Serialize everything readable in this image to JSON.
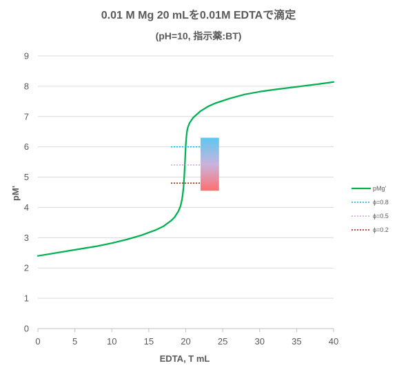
{
  "chart_data": {
    "type": "line",
    "title": "0.01 M Mg 20 mLを0.01M EDTAで滴定",
    "subtitle": "(pH=10, 指示薬:BT)",
    "xlabel": "EDTA, T mL",
    "ylabel": "pM'",
    "xlim": [
      0,
      40
    ],
    "ylim": [
      0,
      9
    ],
    "xticks": [
      "0",
      "5",
      "10",
      "15",
      "20",
      "25",
      "30",
      "35",
      "40"
    ],
    "yticks": [
      "0",
      "1",
      "2",
      "3",
      "4",
      "5",
      "6",
      "7",
      "8",
      "9"
    ],
    "grid": "horizontal",
    "legend_position": "right",
    "series": [
      {
        "name": "pMg'",
        "color": "#00b050",
        "style": "solid",
        "x": [
          0,
          2,
          4,
          6,
          8,
          10,
          12,
          14,
          16,
          17,
          18,
          18.5,
          19,
          19.3,
          19.5,
          19.6,
          19.7,
          19.8,
          19.9,
          20,
          20.1,
          20.2,
          20.3,
          20.5,
          21,
          22,
          23,
          24,
          25,
          26,
          28,
          30,
          32,
          35,
          38,
          40
        ],
        "y": [
          2.4,
          2.48,
          2.56,
          2.64,
          2.72,
          2.82,
          2.94,
          3.08,
          3.26,
          3.38,
          3.56,
          3.68,
          3.87,
          4.05,
          4.27,
          4.44,
          4.68,
          5.05,
          5.5,
          6.05,
          6.38,
          6.55,
          6.65,
          6.78,
          6.96,
          7.18,
          7.33,
          7.44,
          7.52,
          7.6,
          7.73,
          7.82,
          7.89,
          7.98,
          8.07,
          8.14
        ]
      },
      {
        "name": "ϕ=0.8",
        "color": "#00b0f0",
        "style": "dotted",
        "x": [
          18,
          22
        ],
        "y": [
          6.0,
          6.0
        ]
      },
      {
        "name": "ϕ=0.5",
        "color": "#c9a0dc",
        "style": "dotted",
        "x": [
          18,
          22
        ],
        "y": [
          5.4,
          5.4
        ]
      },
      {
        "name": "ϕ=0.2",
        "color": "#c00000",
        "style": "dotted",
        "x": [
          18,
          22
        ],
        "y": [
          4.8,
          4.8
        ]
      }
    ],
    "indicator_bar": {
      "x_range": [
        22,
        24.5
      ],
      "y_range": [
        4.55,
        6.3
      ],
      "top_color": "#5bc8f0",
      "middle_color": "#c9b3dd",
      "bottom_color": "#ff7070"
    }
  }
}
